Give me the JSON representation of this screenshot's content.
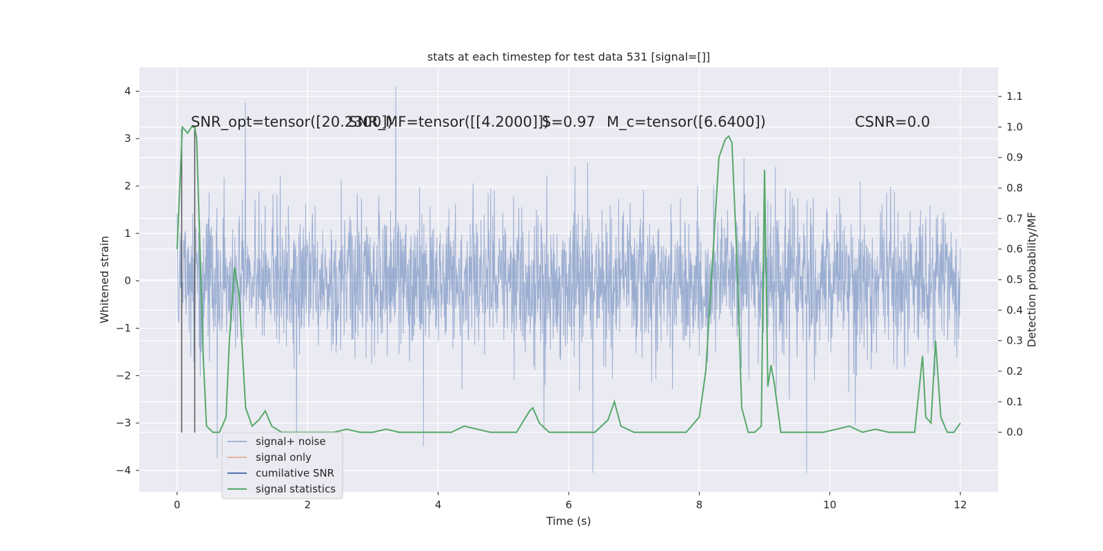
{
  "chart_data": {
    "type": "line",
    "title": "stats at each timestep for test data 531 [signal=[]]",
    "xlabel": "Time (s)",
    "ylabel": "Whitened strain",
    "y2label": "Detection probability/MF",
    "xlim": [
      -0.58,
      12.58
    ],
    "ylim": [
      -4.45,
      4.5
    ],
    "y2lim": [
      -0.195,
      1.195
    ],
    "xticks": [
      0,
      2,
      4,
      6,
      8,
      10,
      12
    ],
    "yticks": [
      -4,
      -3,
      -2,
      -1,
      0,
      1,
      2,
      3,
      4
    ],
    "y2ticks": [
      0.0,
      0.1,
      0.2,
      0.3,
      0.4,
      0.5,
      0.6,
      0.7,
      0.8,
      0.9,
      1.0,
      1.1
    ],
    "grid": true,
    "legend_position": "lower-left",
    "annotations": [
      "SNR_opt=tensor([20.2300])",
      "SNR_MF=tensor([[4.2000]])",
      "S=0.97",
      "M_c=tensor([6.6400])",
      "CSNR=0.0"
    ],
    "series": [
      {
        "name": "signal+ noise",
        "axis": "left",
        "color": "#4c72b0",
        "style": "dense whitened noise trace, ~±1.3 typical, extremes -4.05 to 4.1",
        "x_range": [
          0,
          12
        ]
      },
      {
        "name": "signal only",
        "axis": "left",
        "color": "#dd8452",
        "x": [],
        "values": []
      },
      {
        "name": "cumilative SNR",
        "axis": "left",
        "color": "#4c72b0",
        "x": [],
        "values": []
      },
      {
        "name": "signal statistics",
        "axis": "right",
        "color": "#55a868",
        "x": [
          0.0,
          0.08,
          0.16,
          0.22,
          0.27,
          0.3,
          0.4,
          0.45,
          0.55,
          0.65,
          0.75,
          0.8,
          0.88,
          0.95,
          1.05,
          1.15,
          1.25,
          1.35,
          1.45,
          1.6,
          1.8,
          2.0,
          2.2,
          2.4,
          2.6,
          2.8,
          3.0,
          3.2,
          3.4,
          3.6,
          3.8,
          4.0,
          4.2,
          4.4,
          4.6,
          4.8,
          5.0,
          5.2,
          5.4,
          5.45,
          5.55,
          5.7,
          5.85,
          6.0,
          6.2,
          6.4,
          6.6,
          6.7,
          6.8,
          7.0,
          7.2,
          7.4,
          7.6,
          7.8,
          8.0,
          8.1,
          8.2,
          8.3,
          8.4,
          8.45,
          8.5,
          8.58,
          8.65,
          8.75,
          8.85,
          8.95,
          9.0,
          9.05,
          9.1,
          9.15,
          9.25,
          9.35,
          9.5,
          9.7,
          9.9,
          10.1,
          10.3,
          10.5,
          10.7,
          10.9,
          11.1,
          11.3,
          11.42,
          11.47,
          11.55,
          11.62,
          11.7,
          11.8,
          11.9,
          12.0
        ],
        "values": [
          0.6,
          1.0,
          0.98,
          1.0,
          1.0,
          0.96,
          0.25,
          0.02,
          0.0,
          0.0,
          0.05,
          0.3,
          0.54,
          0.45,
          0.08,
          0.02,
          0.04,
          0.07,
          0.02,
          0.0,
          0.0,
          0.0,
          0.0,
          0.0,
          0.01,
          0.0,
          0.0,
          0.01,
          0.0,
          0.0,
          0.0,
          0.0,
          0.0,
          0.02,
          0.01,
          0.0,
          0.0,
          0.0,
          0.07,
          0.08,
          0.03,
          0.0,
          0.0,
          0.0,
          0.0,
          0.0,
          0.04,
          0.1,
          0.02,
          0.0,
          0.0,
          0.0,
          0.0,
          0.0,
          0.05,
          0.2,
          0.55,
          0.9,
          0.96,
          0.97,
          0.95,
          0.55,
          0.08,
          0.0,
          0.0,
          0.02,
          0.86,
          0.15,
          0.22,
          0.16,
          0.0,
          0.0,
          0.0,
          0.0,
          0.0,
          0.01,
          0.02,
          0.0,
          0.01,
          0.0,
          0.0,
          0.0,
          0.25,
          0.05,
          0.03,
          0.3,
          0.05,
          0.0,
          0.0,
          0.03
        ]
      }
    ],
    "vlines": [
      {
        "x": 0.07,
        "y_range": [
          -3.2,
          3.2
        ],
        "color": "#555555"
      },
      {
        "x": 0.27,
        "y_range": [
          -3.2,
          3.2
        ],
        "color": "#555555"
      }
    ]
  }
}
